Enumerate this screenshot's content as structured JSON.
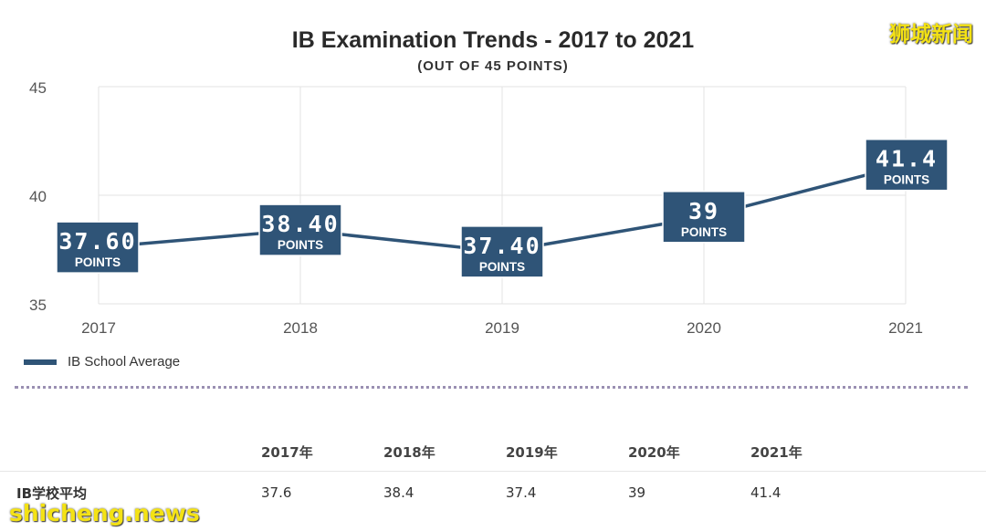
{
  "chart_data": {
    "type": "line",
    "title": "IB Examination Trends  - 2017 to 2021",
    "subtitle": "(OUT OF 45 POINTS)",
    "categories": [
      "2017",
      "2018",
      "2019",
      "2020",
      "2021"
    ],
    "ylim": [
      35,
      45
    ],
    "yticks": [
      "35",
      "40",
      "45"
    ],
    "grid": true,
    "legend_position": "bottom-left",
    "series": [
      {
        "name": "IB School Average",
        "color": "#2f5477",
        "values": [
          37.6,
          38.4,
          37.4,
          39,
          41.4
        ],
        "labels": [
          "37.60",
          "38.40",
          "37.40",
          "39",
          "41.4"
        ],
        "label_unit": "POINTS"
      }
    ]
  },
  "table": {
    "headers": [
      "",
      "2017年",
      "2018年",
      "2019年",
      "2020年",
      "2021年"
    ],
    "rows": [
      {
        "label": "IB学校平均",
        "values": [
          "37.6",
          "38.4",
          "37.4",
          "39",
          "41.4"
        ]
      }
    ]
  },
  "watermarks": {
    "top": "狮城新闻",
    "bottom": "shicheng.news"
  }
}
